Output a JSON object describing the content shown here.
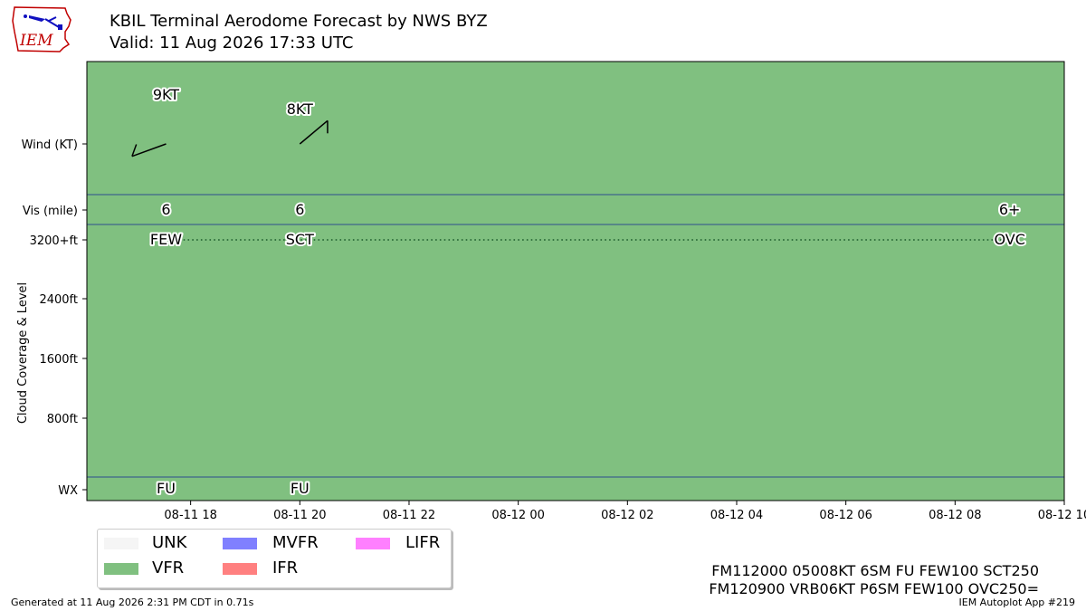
{
  "header": {
    "title": "KBIL Terminal Aerodome Forecast by NWS BYZ",
    "valid": "Valid: 11 Aug 2026 17:33 UTC",
    "logo_text": "IEM"
  },
  "chart_data": {
    "type": "timeline",
    "row_labels": [
      "Wind (KT)",
      "Vis (mile)",
      "3200+ft",
      "2400ft",
      "1600ft",
      "800ft",
      "WX"
    ],
    "ylabel": "Cloud Coverage & Level",
    "x_ticks": [
      "08-11 18",
      "08-11 20",
      "08-11 22",
      "08-12 00",
      "08-12 02",
      "08-12 04",
      "08-12 06",
      "08-12 08",
      "08-12 10"
    ],
    "x_range_hours_from_0811_00z": [
      16.1,
      34.0
    ],
    "background_category": "VFR",
    "category_colors": {
      "UNK": "#f5f5f5",
      "VFR": "#80c080",
      "MVFR": "#8080ff",
      "IFR": "#ff8080",
      "LIFR": "#ff80ff"
    },
    "forecast_periods": [
      {
        "time_hours": 17.55,
        "wind_label": "9KT",
        "wind_dir": 250,
        "wind_speed": 9,
        "vis": "6",
        "cloud": "FEW",
        "wx": "FU"
      },
      {
        "time_hours": 20.0,
        "wind_label": "8KT",
        "wind_dir": 50,
        "wind_speed": 8,
        "vis": "6",
        "cloud": "SCT",
        "wx": "FU"
      },
      {
        "time_hours": 33.0,
        "wind_label": "",
        "wind_dir": null,
        "wind_speed": null,
        "vis": "6+",
        "cloud": "OVC",
        "wx": ""
      }
    ],
    "cloud_level_ft": 3200
  },
  "legend": {
    "items": [
      {
        "label": "UNK",
        "color": "#f5f5f5"
      },
      {
        "label": "MVFR",
        "color": "#8080ff"
      },
      {
        "label": "LIFR",
        "color": "#ff80ff"
      },
      {
        "label": "VFR",
        "color": "#80c080"
      },
      {
        "label": "IFR",
        "color": "#ff8080"
      }
    ]
  },
  "taf_text": {
    "line1": "FM112000 05008KT 6SM FU FEW100 SCT250",
    "line2": "FM120900 VRB06KT P6SM FEW100 OVC250="
  },
  "footer": {
    "generated": "Generated at 11 Aug 2026 2:31 PM CDT in 0.71s",
    "app": "IEM Autoplot App #219"
  }
}
